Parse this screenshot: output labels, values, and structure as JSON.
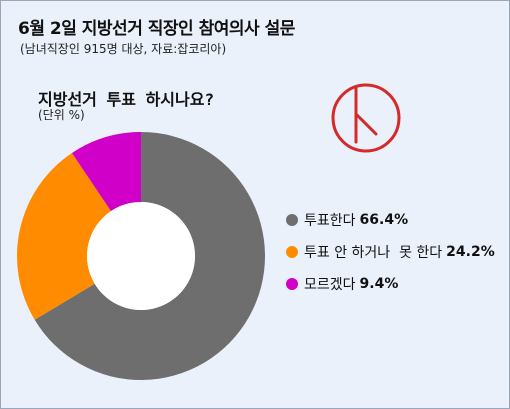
{
  "header": {
    "title": "6월 2일 지방선거 직장인 참여의사 설문",
    "subtitle": "(남녀직장인 915명 대상, 자료:잡코리아)"
  },
  "question": "지방선거 투표 하시나요?",
  "unit": "(단위 %)",
  "chart_data": {
    "type": "pie",
    "donut": true,
    "title": "지방선거 투표 하시나요?",
    "unit": "%",
    "legend_position": "right",
    "slices": [
      {
        "label": "투표한다",
        "value": 66.4,
        "display": "66.4%",
        "color": "#6e6e6e"
      },
      {
        "label": "투표 안 하거나  못 한다",
        "value": 24.2,
        "display": "24.2%",
        "color": "#ff8c00"
      },
      {
        "label": "모르겠다",
        "value": 9.4,
        "display": "9.4%",
        "color": "#d000c8"
      }
    ]
  },
  "logo": {
    "color": "#d42a2a"
  }
}
